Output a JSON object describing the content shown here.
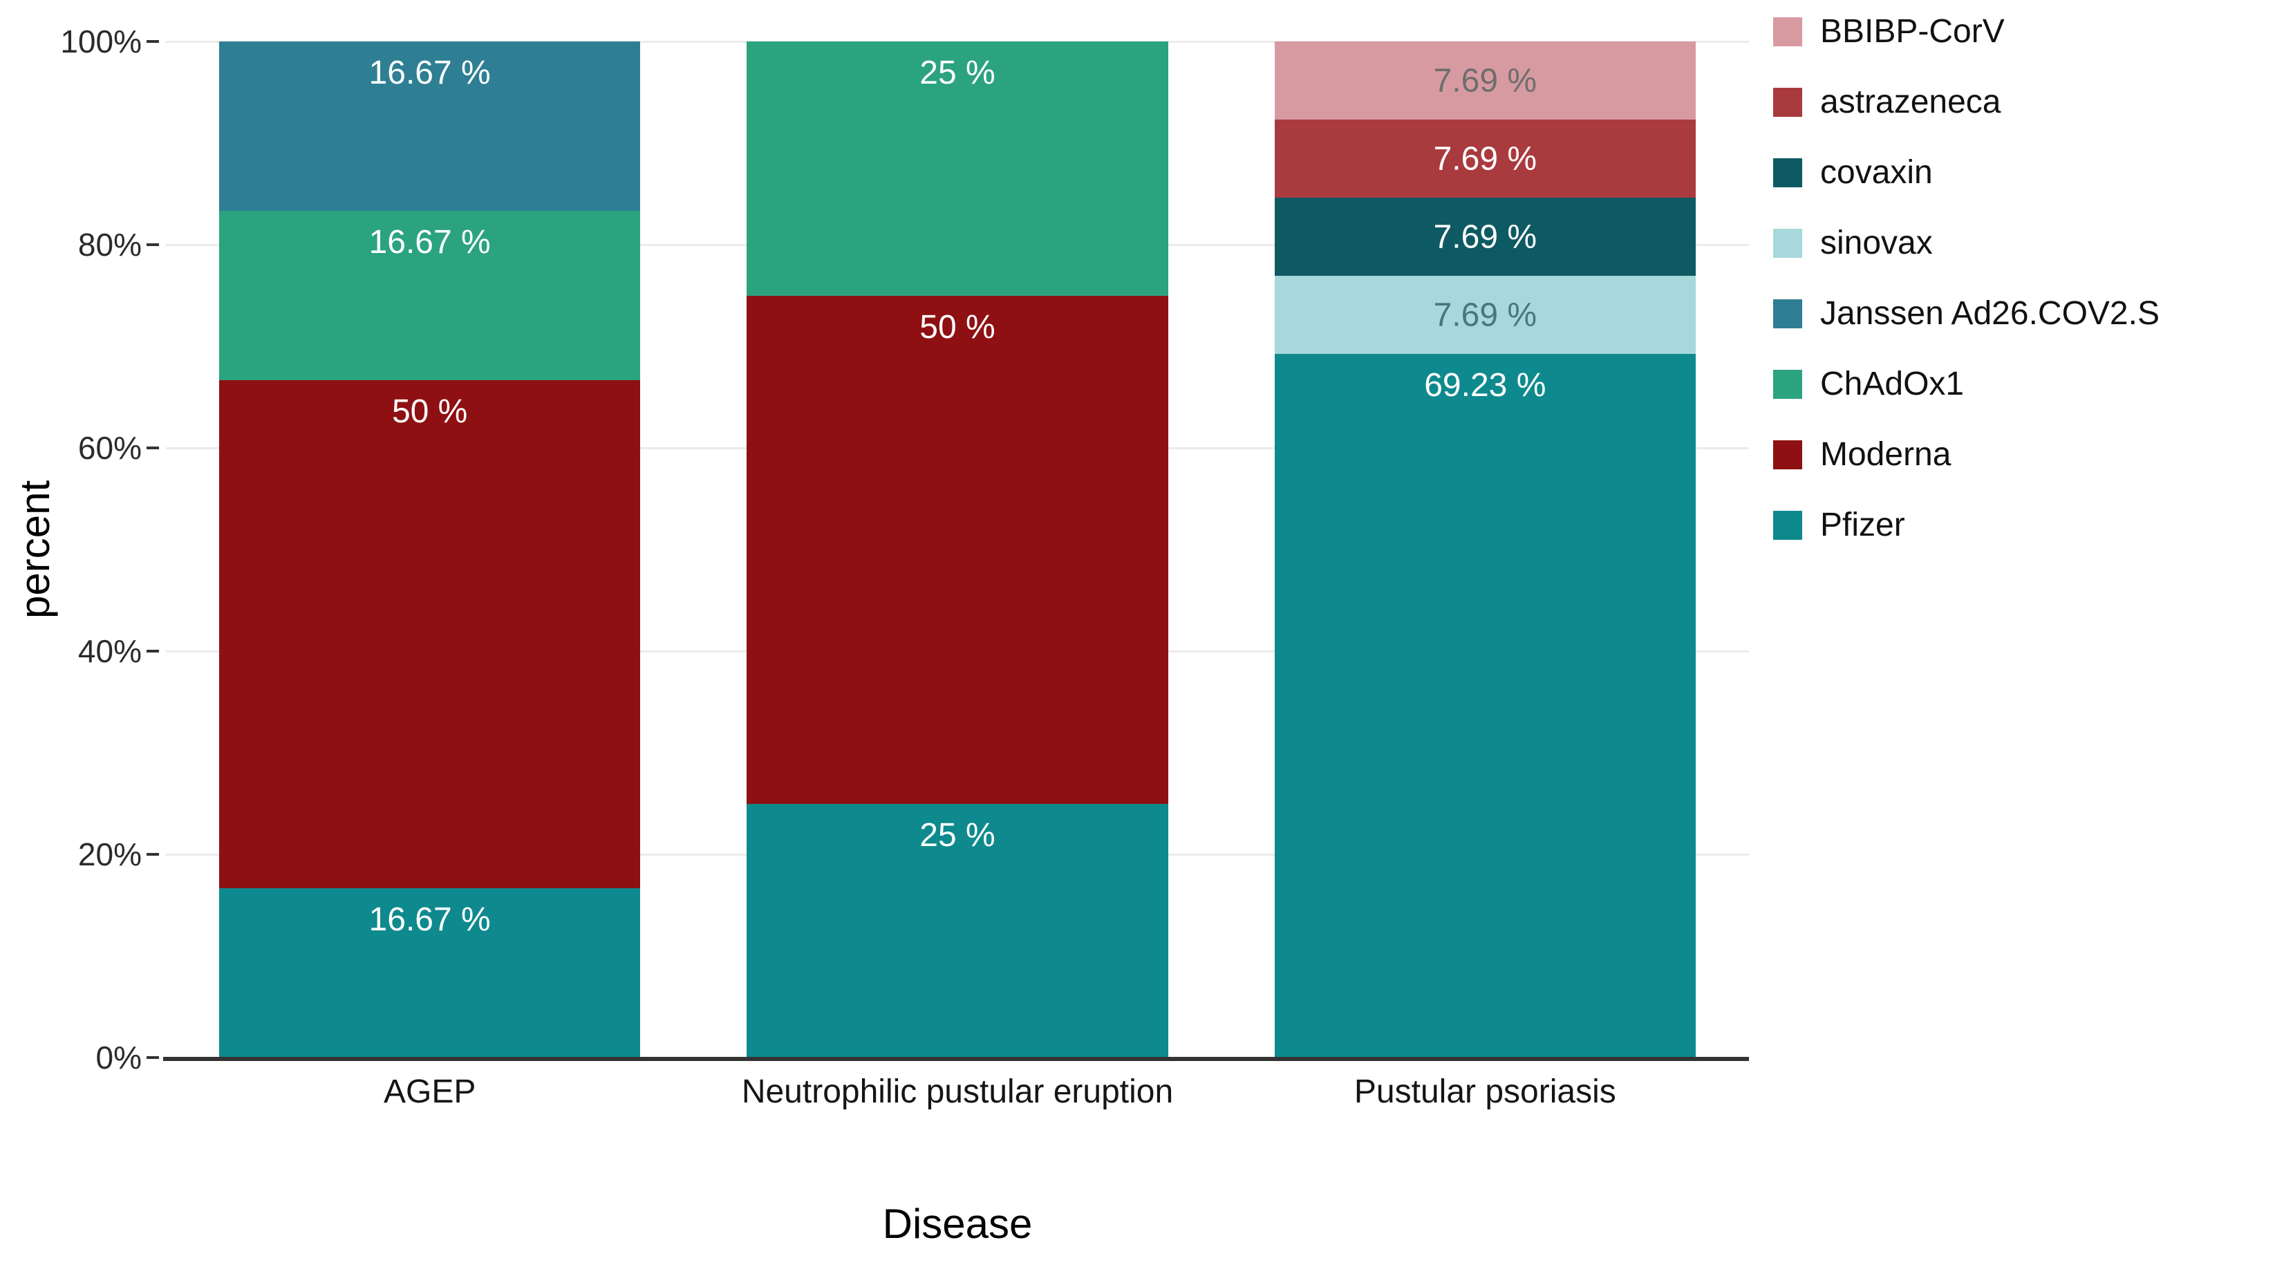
{
  "chart_data": {
    "type": "bar",
    "stacked": true,
    "percent_stacked": true,
    "title": "",
    "xlabel": "Disease",
    "ylabel": "percent",
    "ylim": [
      0,
      100
    ],
    "grid": "horizontal-major",
    "legend_position": "top-right",
    "yticks": [
      0,
      20,
      40,
      60,
      80,
      100
    ],
    "ytick_labels": [
      "0%",
      "20%",
      "40%",
      "60%",
      "80%",
      "100%"
    ],
    "categories": [
      "AGEP",
      "Neutrophilic pustular eruption",
      "Pustular psoriasis"
    ],
    "legend": [
      {
        "name": "BBIBP-CorV",
        "color": "#d89aa1"
      },
      {
        "name": "astrazeneca",
        "color": "#a93b3f"
      },
      {
        "name": "covaxin",
        "color": "#0e5a62"
      },
      {
        "name": "sinovax",
        "color": "#a7d8db"
      },
      {
        "name": "Janssen Ad26.COV2.S",
        "color": "#2e7f93"
      },
      {
        "name": "ChAdOx1",
        "color": "#2ba37e"
      },
      {
        "name": "Moderna",
        "color": "#8e1013"
      },
      {
        "name": "Pfizer",
        "color": "#0e8a8e"
      }
    ],
    "label_colors": {
      "BBIBP-CorV": "#6e6e6e",
      "sinovax": "#47787c",
      "default": "#ffffff"
    },
    "bars": [
      {
        "category": "AGEP",
        "segments": [
          {
            "series": "Pfizer",
            "value": 16.67,
            "label": "16.67 %"
          },
          {
            "series": "Moderna",
            "value": 50,
            "label": "50 %"
          },
          {
            "series": "ChAdOx1",
            "value": 16.67,
            "label": "16.67 %"
          },
          {
            "series": "Janssen Ad26.COV2.S",
            "value": 16.67,
            "label": "16.67 %"
          }
        ]
      },
      {
        "category": "Neutrophilic pustular eruption",
        "segments": [
          {
            "series": "Pfizer",
            "value": 25,
            "label": "25 %"
          },
          {
            "series": "Moderna",
            "value": 50,
            "label": "50 %"
          },
          {
            "series": "ChAdOx1",
            "value": 25,
            "label": "25 %"
          }
        ]
      },
      {
        "category": "Pustular psoriasis",
        "segments": [
          {
            "series": "Pfizer",
            "value": 69.23,
            "label": "69.23 %"
          },
          {
            "series": "sinovax",
            "value": 7.69,
            "label": "7.69 %"
          },
          {
            "series": "covaxin",
            "value": 7.69,
            "label": "7.69 %"
          },
          {
            "series": "astrazeneca",
            "value": 7.69,
            "label": "7.69 %"
          },
          {
            "series": "BBIBP-CorV",
            "value": 7.69,
            "label": "7.69 %"
          }
        ]
      }
    ]
  }
}
